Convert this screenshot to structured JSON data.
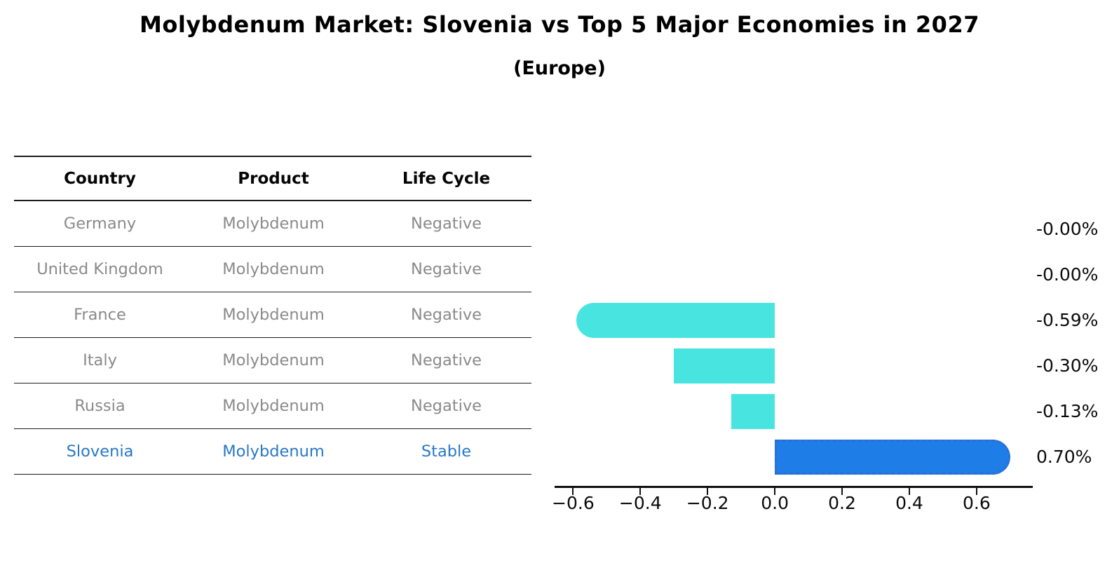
{
  "header": {
    "title": "Molybdenum Market: Slovenia vs Top 5 Major Economies in 2027",
    "subtitle": "(Europe)"
  },
  "colors": {
    "bar_negative": "#48E5E0",
    "bar_highlight": "#1F7DE8",
    "bar_highlight_border": "#2B6FD4",
    "table_row_text": "#8a8a8a",
    "table_highlight_text": "#2878C8",
    "axis_text": "#0a0a0a"
  },
  "table": {
    "headers": {
      "country": "Country",
      "product": "Product",
      "life_cycle": "Life Cycle"
    },
    "rows": [
      {
        "country": "Germany",
        "product": "Molybdenum",
        "life_cycle": "Negative",
        "highlight": false
      },
      {
        "country": "United Kingdom",
        "product": "Molybdenum",
        "life_cycle": "Negative",
        "highlight": false
      },
      {
        "country": "France",
        "product": "Molybdenum",
        "life_cycle": "Negative",
        "highlight": false
      },
      {
        "country": "Italy",
        "product": "Molybdenum",
        "life_cycle": "Negative",
        "highlight": false
      },
      {
        "country": "Russia",
        "product": "Molybdenum",
        "life_cycle": "Negative",
        "highlight": false
      },
      {
        "country": "Slovenia",
        "product": "Molybdenum",
        "life_cycle": "Stable",
        "highlight": true
      }
    ]
  },
  "chart_data": {
    "type": "bar",
    "orientation": "horizontal",
    "title": "Molybdenum Market: Slovenia vs Top 5 Major Economies in 2027 (Europe)",
    "categories": [
      "Germany",
      "United Kingdom",
      "France",
      "Italy",
      "Russia",
      "Slovenia"
    ],
    "values": [
      -0.0,
      -0.0,
      -0.59,
      -0.3,
      -0.13,
      0.7
    ],
    "value_labels": [
      "-0.00%",
      "-0.00%",
      "-0.59%",
      "-0.30%",
      "-0.13%",
      "0.70%"
    ],
    "unit": "%",
    "highlight_index": 5,
    "rounded_cap": [
      null,
      null,
      "left",
      null,
      null,
      "right"
    ],
    "x_ticks": [
      -0.6,
      -0.4,
      -0.2,
      0.0,
      0.2,
      0.4,
      0.6
    ],
    "x_tick_labels": [
      "−0.6",
      "−0.4",
      "−0.2",
      "0.0",
      "0.2",
      "0.4",
      "0.6"
    ],
    "xlim": [
      -0.655,
      0.765
    ],
    "grid": false,
    "legend": null
  }
}
